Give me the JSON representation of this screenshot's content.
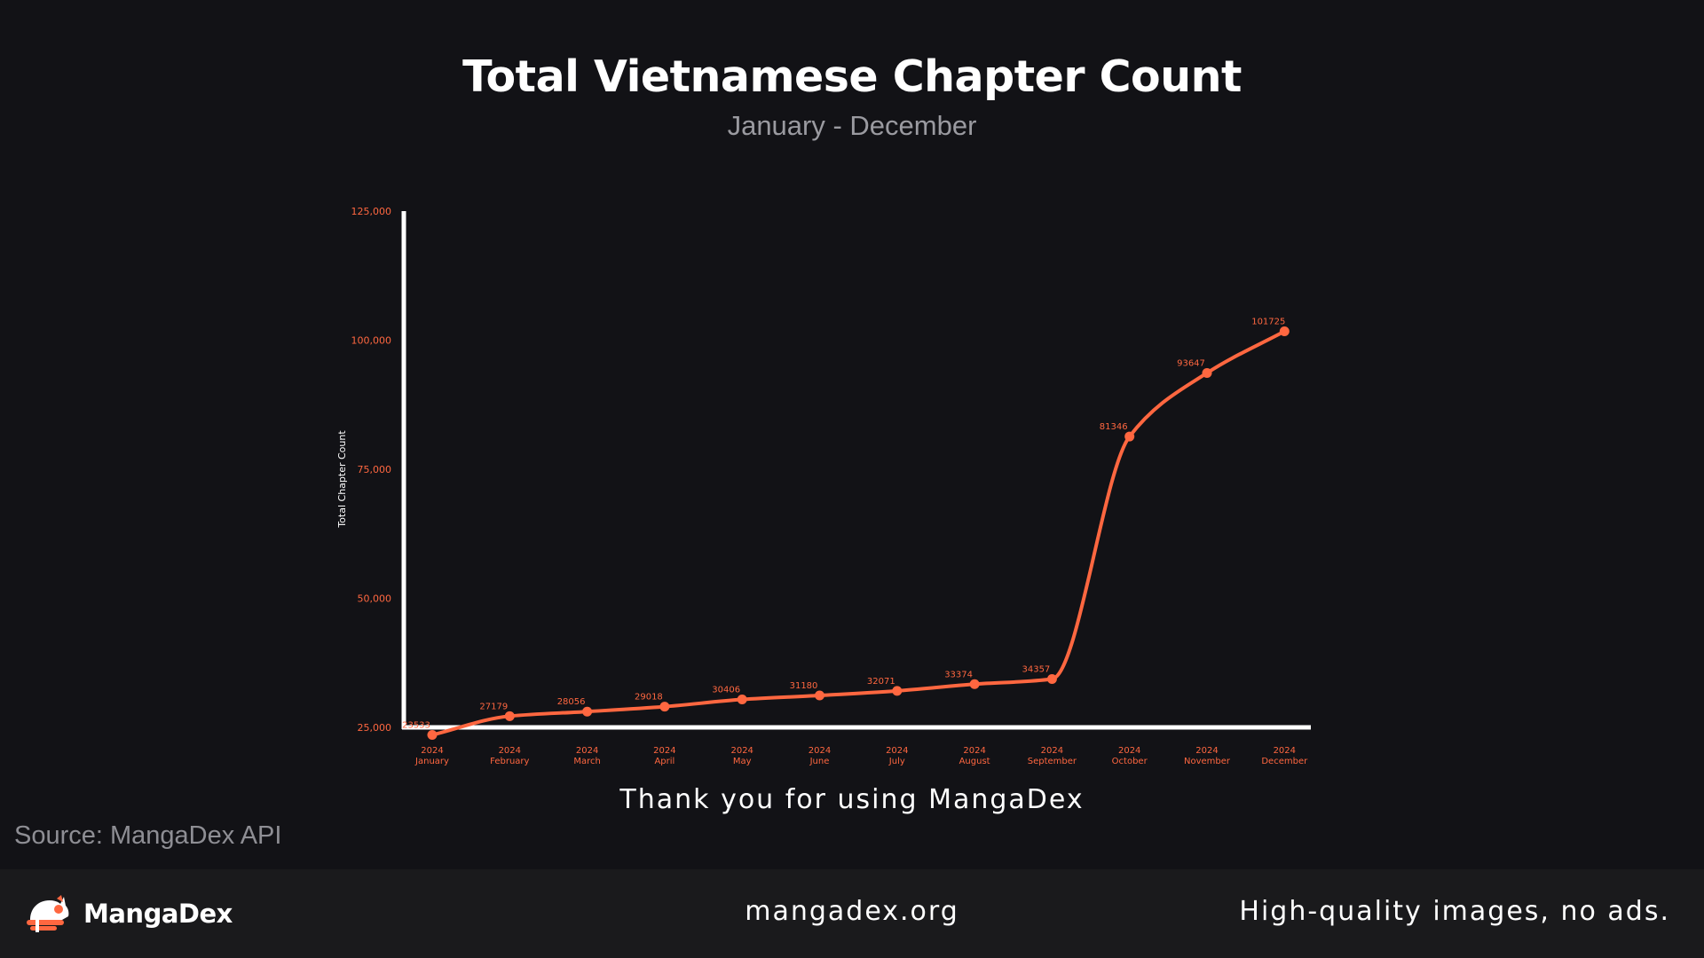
{
  "colors": {
    "background": "#121216",
    "accent": "#ff6740",
    "axis": "#ffffff",
    "footer_bg": "#1a1a1c"
  },
  "header": {
    "title": "Total Vietnamese Chapter Count",
    "subtitle": "January - December"
  },
  "chart_data": {
    "type": "line",
    "title": "Total Vietnamese Chapter Count",
    "subtitle": "January - December",
    "xlabel": "",
    "ylabel": "Total Chapter Count",
    "ylim": [
      25000,
      125000
    ],
    "y_ticks": [
      "25,000",
      "50,000",
      "75,000",
      "100,000",
      "125,000"
    ],
    "y_tick_values": [
      25000,
      50000,
      75000,
      100000,
      125000
    ],
    "categories": [
      [
        "2024",
        "January"
      ],
      [
        "2024",
        "February"
      ],
      [
        "2024",
        "March"
      ],
      [
        "2024",
        "April"
      ],
      [
        "2024",
        "May"
      ],
      [
        "2024",
        "June"
      ],
      [
        "2024",
        "July"
      ],
      [
        "2024",
        "August"
      ],
      [
        "2024",
        "September"
      ],
      [
        "2024",
        "October"
      ],
      [
        "2024",
        "November"
      ],
      [
        "2024",
        "December"
      ]
    ],
    "values": [
      23533,
      27179,
      28056,
      29018,
      30406,
      31180,
      32071,
      33374,
      34357,
      81346,
      93647,
      101725
    ],
    "data_labels": [
      "23533",
      "27179",
      "28056",
      "29018",
      "30406",
      "31180",
      "32071",
      "33374",
      "34357",
      "81346",
      "93647",
      "101725"
    ],
    "grid": false,
    "legend": "none"
  },
  "footer": {
    "thanks": "Thank you for using MangaDex",
    "source": "Source: MangaDex API",
    "logo_text": "MangaDex",
    "site": "mangadex.org",
    "tagline": "High-quality images, no ads."
  },
  "icons": {
    "logo": "mangadex-cat-logo-icon"
  }
}
